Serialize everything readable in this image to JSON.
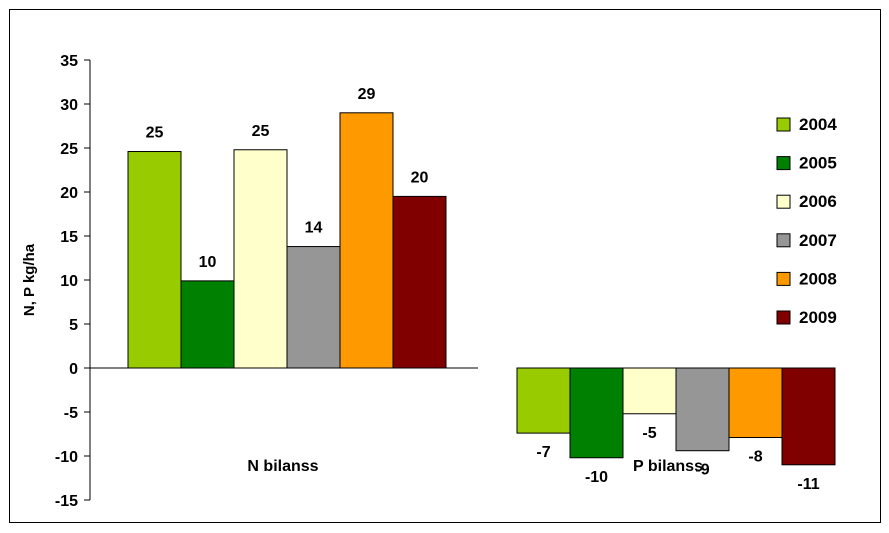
{
  "chart_data": {
    "type": "bar",
    "categories": [
      "N bilanss",
      "P bilanss"
    ],
    "series": [
      {
        "name": "2004",
        "values": [
          24.6,
          -7.4
        ],
        "labels": [
          "25",
          "-7"
        ],
        "color": "#99CC00"
      },
      {
        "name": "2005",
        "values": [
          9.9,
          -10.2
        ],
        "labels": [
          "10",
          "-10"
        ],
        "color": "#008000"
      },
      {
        "name": "2006",
        "values": [
          24.8,
          -5.2
        ],
        "labels": [
          "25",
          "-5"
        ],
        "color": "#FFFFCC"
      },
      {
        "name": "2007",
        "values": [
          13.8,
          -9.4
        ],
        "labels": [
          "14",
          "-9"
        ],
        "color": "#969696"
      },
      {
        "name": "2008",
        "values": [
          29.0,
          -7.9
        ],
        "labels": [
          "29",
          "-8"
        ],
        "color": "#FF9900"
      },
      {
        "name": "2009",
        "values": [
          19.5,
          -11.0
        ],
        "labels": [
          "20",
          "-11"
        ],
        "color": "#800000"
      }
    ],
    "ylabel": "N, P kg/ha",
    "ylim": [
      -15,
      35
    ],
    "yticks": [
      "-15",
      "-10",
      "-5",
      "0",
      "5",
      "10",
      "15",
      "20",
      "25",
      "30",
      "35"
    ],
    "grid": false,
    "legend_position": "right"
  }
}
